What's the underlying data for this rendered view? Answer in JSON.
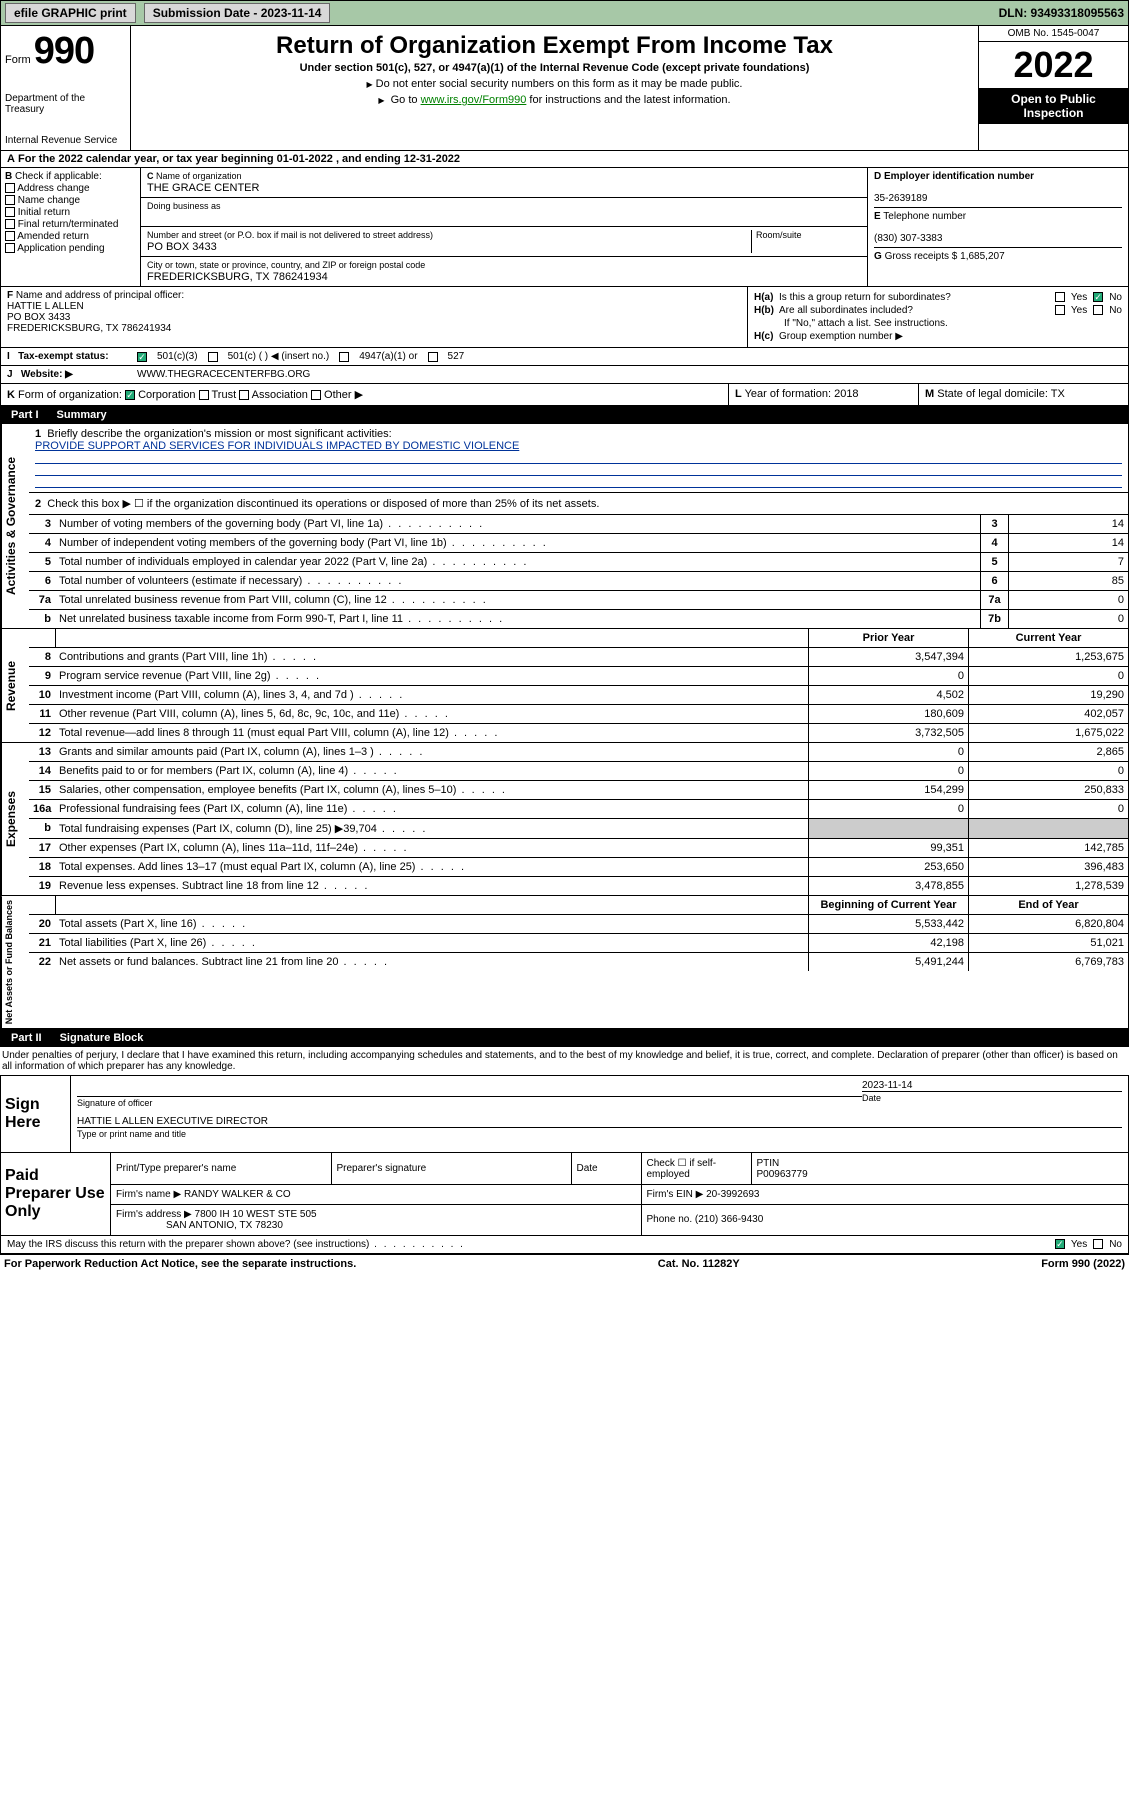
{
  "topbar": {
    "efile": "efile GRAPHIC print",
    "submission_label": "Submission Date - 2023-11-14",
    "dln": "DLN: 93493318095563"
  },
  "header": {
    "form_label": "Form",
    "form_number": "990",
    "dept": "Department of the Treasury",
    "irs": "Internal Revenue Service",
    "title": "Return of Organization Exempt From Income Tax",
    "sub1": "Under section 501(c), 527, or 4947(a)(1) of the Internal Revenue Code (except private foundations)",
    "sub2": "Do not enter social security numbers on this form as it may be made public.",
    "sub3_pre": "Go to ",
    "sub3_link": "www.irs.gov/Form990",
    "sub3_post": " for instructions and the latest information.",
    "omb": "OMB No. 1545-0047",
    "year": "2022",
    "open": "Open to Public Inspection"
  },
  "A": {
    "text": "For the 2022 calendar year, or tax year beginning 01-01-2022    , and ending 12-31-2022"
  },
  "B": {
    "label": "Check if applicable:",
    "opts": [
      "Address change",
      "Name change",
      "Initial return",
      "Final return/terminated",
      "Amended return",
      "Application pending"
    ]
  },
  "C": {
    "name_lbl": "Name of organization",
    "name": "THE GRACE CENTER",
    "dba_lbl": "Doing business as",
    "dba": "",
    "addr_lbl": "Number and street (or P.O. box if mail is not delivered to street address)",
    "room_lbl": "Room/suite",
    "addr": "PO BOX 3433",
    "city_lbl": "City or town, state or province, country, and ZIP or foreign postal code",
    "city": "FREDERICKSBURG, TX  786241934"
  },
  "D": {
    "ein_lbl": "Employer identification number",
    "ein": "35-2639189",
    "tel_lbl": "Telephone number",
    "tel": "(830) 307-3383",
    "gross_lbl": "Gross receipts $",
    "gross": "1,685,207"
  },
  "F": {
    "lbl": "Name and address of principal officer:",
    "name": "HATTIE L ALLEN",
    "addr1": "PO BOX 3433",
    "addr2": "FREDERICKSBURG, TX  786241934"
  },
  "H": {
    "a_lbl": "Is this a group return for subordinates?",
    "b_lbl": "Are all subordinates included?",
    "b_note": "If \"No,\" attach a list. See instructions.",
    "c_lbl": "Group exemption number ▶"
  },
  "I": {
    "lbl": "Tax-exempt status:",
    "opt1": "501(c)(3)",
    "opt2": "501(c) (  ) ◀ (insert no.)",
    "opt3": "4947(a)(1) or",
    "opt4": "527"
  },
  "J": {
    "lbl": "Website: ▶",
    "val": "WWW.THEGRACECENTERFBG.ORG"
  },
  "K": {
    "lbl": "Form of organization:",
    "o1": "Corporation",
    "o2": "Trust",
    "o3": "Association",
    "o4": "Other ▶"
  },
  "L": {
    "lbl": "Year of formation:",
    "val": "2018"
  },
  "M": {
    "lbl": "State of legal domicile:",
    "val": "TX"
  },
  "part1": {
    "label": "Part I",
    "title": "Summary"
  },
  "mission": {
    "lbl": "Briefly describe the organization's mission or most significant activities:",
    "text": "PROVIDE SUPPORT AND SERVICES FOR INDIVIDUALS IMPACTED BY DOMESTIC VIOLENCE"
  },
  "line2": "Check this box ▶ ☐  if the organization discontinued its operations or disposed of more than 25% of its net assets.",
  "gov_lines": [
    {
      "n": "3",
      "d": "Number of voting members of the governing body (Part VI, line 1a)",
      "box": "3",
      "v": "14"
    },
    {
      "n": "4",
      "d": "Number of independent voting members of the governing body (Part VI, line 1b)",
      "box": "4",
      "v": "14"
    },
    {
      "n": "5",
      "d": "Total number of individuals employed in calendar year 2022 (Part V, line 2a)",
      "box": "5",
      "v": "7"
    },
    {
      "n": "6",
      "d": "Total number of volunteers (estimate if necessary)",
      "box": "6",
      "v": "85"
    },
    {
      "n": "7a",
      "d": "Total unrelated business revenue from Part VIII, column (C), line 12",
      "box": "7a",
      "v": "0"
    },
    {
      "n": "b",
      "d": "Net unrelated business taxable income from Form 990-T, Part I, line 11",
      "box": "7b",
      "v": "0"
    }
  ],
  "col_hdr": {
    "prior": "Prior Year",
    "current": "Current Year"
  },
  "revenue_side": "Revenue",
  "revenue": [
    {
      "n": "8",
      "d": "Contributions and grants (Part VIII, line 1h)",
      "p": "3,547,394",
      "c": "1,253,675"
    },
    {
      "n": "9",
      "d": "Program service revenue (Part VIII, line 2g)",
      "p": "0",
      "c": "0"
    },
    {
      "n": "10",
      "d": "Investment income (Part VIII, column (A), lines 3, 4, and 7d )",
      "p": "4,502",
      "c": "19,290"
    },
    {
      "n": "11",
      "d": "Other revenue (Part VIII, column (A), lines 5, 6d, 8c, 9c, 10c, and 11e)",
      "p": "180,609",
      "c": "402,057"
    },
    {
      "n": "12",
      "d": "Total revenue—add lines 8 through 11 (must equal Part VIII, column (A), line 12)",
      "p": "3,732,505",
      "c": "1,675,022"
    }
  ],
  "expenses_side": "Expenses",
  "expenses": [
    {
      "n": "13",
      "d": "Grants and similar amounts paid (Part IX, column (A), lines 1–3 )",
      "p": "0",
      "c": "2,865"
    },
    {
      "n": "14",
      "d": "Benefits paid to or for members (Part IX, column (A), line 4)",
      "p": "0",
      "c": "0"
    },
    {
      "n": "15",
      "d": "Salaries, other compensation, employee benefits (Part IX, column (A), lines 5–10)",
      "p": "154,299",
      "c": "250,833"
    },
    {
      "n": "16a",
      "d": "Professional fundraising fees (Part IX, column (A), line 11e)",
      "p": "0",
      "c": "0"
    },
    {
      "n": "b",
      "d": "Total fundraising expenses (Part IX, column (D), line 25) ▶39,704",
      "p": "",
      "c": "",
      "grey": true
    },
    {
      "n": "17",
      "d": "Other expenses (Part IX, column (A), lines 11a–11d, 11f–24e)",
      "p": "99,351",
      "c": "142,785"
    },
    {
      "n": "18",
      "d": "Total expenses. Add lines 13–17 (must equal Part IX, column (A), line 25)",
      "p": "253,650",
      "c": "396,483"
    },
    {
      "n": "19",
      "d": "Revenue less expenses. Subtract line 18 from line 12",
      "p": "3,478,855",
      "c": "1,278,539"
    }
  ],
  "net_side": "Net Assets or Fund Balances",
  "net_hdr": {
    "begin": "Beginning of Current Year",
    "end": "End of Year"
  },
  "net": [
    {
      "n": "20",
      "d": "Total assets (Part X, line 16)",
      "p": "5,533,442",
      "c": "6,820,804"
    },
    {
      "n": "21",
      "d": "Total liabilities (Part X, line 26)",
      "p": "42,198",
      "c": "51,021"
    },
    {
      "n": "22",
      "d": "Net assets or fund balances. Subtract line 21 from line 20",
      "p": "5,491,244",
      "c": "6,769,783"
    }
  ],
  "part2": {
    "label": "Part II",
    "title": "Signature Block"
  },
  "penalties": "Under penalties of perjury, I declare that I have examined this return, including accompanying schedules and statements, and to the best of my knowledge and belief, it is true, correct, and complete. Declaration of preparer (other than officer) is based on all information of which preparer has any knowledge.",
  "sign": {
    "here": "Sign Here",
    "sig_of_officer": "Signature of officer",
    "date_lbl": "Date",
    "date": "2023-11-14",
    "name": "HATTIE L ALLEN  EXECUTIVE DIRECTOR",
    "name_lbl": "Type or print name and title"
  },
  "preparer": {
    "lbl": "Paid Preparer Use Only",
    "h1": "Print/Type preparer's name",
    "h2": "Preparer's signature",
    "h3": "Date",
    "h4": "Check ☐ if self-employed",
    "h5_lbl": "PTIN",
    "h5": "P00963779",
    "firm_lbl": "Firm's name   ▶",
    "firm": "RANDY WALKER & CO",
    "ein_lbl": "Firm's EIN ▶",
    "ein": "20-3992693",
    "addr_lbl": "Firm's address ▶",
    "addr1": "7800 IH 10 WEST STE 505",
    "addr2": "SAN ANTONIO, TX  78230",
    "phone_lbl": "Phone no.",
    "phone": "(210) 366-9430"
  },
  "discuss": "May the IRS discuss this return with the preparer shown above? (see instructions)",
  "footer": {
    "left": "For Paperwork Reduction Act Notice, see the separate instructions.",
    "mid": "Cat. No. 11282Y",
    "right": "Form 990 (2022)"
  },
  "labels": {
    "activities": "Activities & Governance",
    "yes": "Yes",
    "no": "No",
    "ha": "H(a)",
    "hb": "H(b)",
    "hc": "H(c)",
    "E": "E",
    "G": "G",
    "D": "D",
    "B": "B",
    "C": "C",
    "F": "F",
    "I": "I",
    "J": "J",
    "K": "K",
    "L": "L",
    "M": "M"
  }
}
